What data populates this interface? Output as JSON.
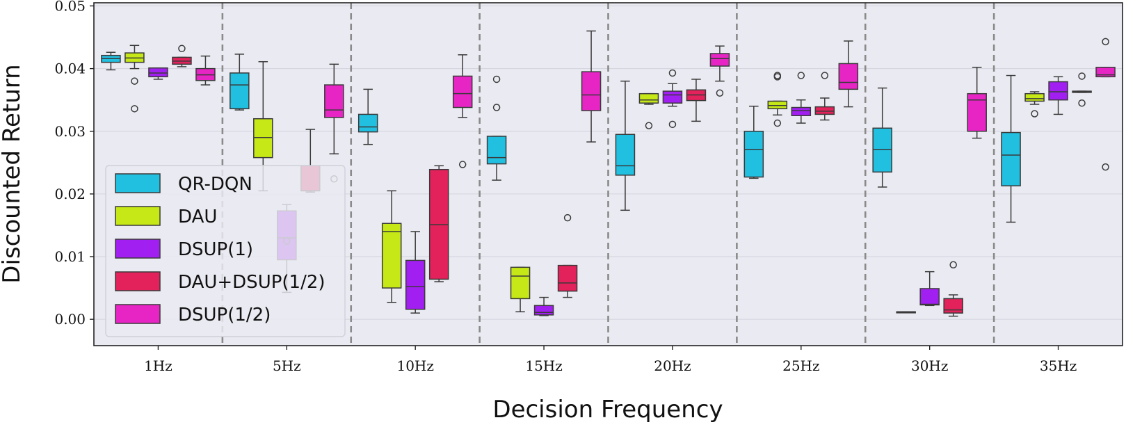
{
  "chart_data": {
    "type": "box",
    "xlabel": "Decision Frequency",
    "ylabel": "Discounted Return",
    "ylim": [
      -0.0042,
      0.0505
    ],
    "yticks": [
      0.0,
      0.01,
      0.02,
      0.03,
      0.04,
      0.05
    ],
    "ytick_labels": [
      "0.00",
      "0.01",
      "0.02",
      "0.03",
      "0.04",
      "0.05"
    ],
    "grid": "horizontal",
    "legend_position": "lower-left",
    "categories": [
      "1Hz",
      "5Hz",
      "10Hz",
      "15Hz",
      "20Hz",
      "25Hz",
      "30Hz",
      "35Hz"
    ],
    "series": [
      {
        "name": "QR-DQN",
        "color": "#21bfe0",
        "boxes": [
          {
            "min": 0.0398,
            "q1": 0.041,
            "median": 0.0416,
            "q3": 0.0421,
            "max": 0.0426,
            "outliers": []
          },
          {
            "min": 0.0334,
            "q1": 0.0336,
            "median": 0.0374,
            "q3": 0.0393,
            "max": 0.0423,
            "outliers": []
          },
          {
            "min": 0.0279,
            "q1": 0.0299,
            "median": 0.0307,
            "q3": 0.0327,
            "max": 0.0367,
            "outliers": []
          },
          {
            "min": 0.0222,
            "q1": 0.0248,
            "median": 0.0258,
            "q3": 0.0292,
            "max": 0.0292,
            "outliers": [
              0.0383,
              0.0338
            ]
          },
          {
            "min": 0.0174,
            "q1": 0.023,
            "median": 0.0245,
            "q3": 0.0295,
            "max": 0.038,
            "outliers": []
          },
          {
            "min": 0.0225,
            "q1": 0.0227,
            "median": 0.0271,
            "q3": 0.03,
            "max": 0.034,
            "outliers": []
          },
          {
            "min": 0.0211,
            "q1": 0.0235,
            "median": 0.0271,
            "q3": 0.0305,
            "max": 0.0369,
            "outliers": []
          },
          {
            "min": 0.0155,
            "q1": 0.0213,
            "median": 0.0262,
            "q3": 0.0298,
            "max": 0.0389,
            "outliers": []
          }
        ]
      },
      {
        "name": "DAU",
        "color": "#c6e816",
        "boxes": [
          {
            "min": 0.04,
            "q1": 0.041,
            "median": 0.0417,
            "q3": 0.0425,
            "max": 0.0437,
            "outliers": [
              0.038,
              0.0336
            ]
          },
          {
            "min": 0.0205,
            "q1": 0.0258,
            "median": 0.029,
            "q3": 0.032,
            "max": 0.0411,
            "outliers": []
          },
          {
            "min": 0.0027,
            "q1": 0.005,
            "median": 0.014,
            "q3": 0.0153,
            "max": 0.0205,
            "outliers": []
          },
          {
            "min": 0.0012,
            "q1": 0.0033,
            "median": 0.0069,
            "q3": 0.0083,
            "max": 0.0083,
            "outliers": []
          },
          {
            "min": 0.0343,
            "q1": 0.0345,
            "median": 0.035,
            "q3": 0.036,
            "max": 0.036,
            "outliers": [
              0.0309
            ]
          },
          {
            "min": 0.0326,
            "q1": 0.0336,
            "median": 0.0341,
            "q3": 0.0348,
            "max": 0.0348,
            "outliers": [
              0.0389,
              0.0387,
              0.0313
            ]
          },
          {
            "min": 0.0012,
            "q1": 0.0012,
            "median": 0.0012,
            "q3": 0.0012,
            "max": 0.0012,
            "outliers": []
          },
          {
            "min": 0.0343,
            "q1": 0.0348,
            "median": 0.0352,
            "q3": 0.036,
            "max": 0.0363,
            "outliers": [
              0.0328
            ]
          }
        ]
      },
      {
        "name": "DSUP(1)",
        "color": "#a21ff2",
        "boxes": [
          {
            "min": 0.0383,
            "q1": 0.0387,
            "median": 0.0393,
            "q3": 0.0401,
            "max": 0.0401,
            "outliers": []
          },
          {
            "min": 0.0043,
            "q1": 0.0095,
            "median": 0.013,
            "q3": 0.0173,
            "max": 0.0183,
            "outliers": [
              0.0125
            ]
          },
          {
            "min": 0.001,
            "q1": 0.0016,
            "median": 0.0052,
            "q3": 0.0094,
            "max": 0.014,
            "outliers": []
          },
          {
            "min": 0.0006,
            "q1": 0.0007,
            "median": 0.0011,
            "q3": 0.0022,
            "max": 0.0035,
            "outliers": []
          },
          {
            "min": 0.034,
            "q1": 0.0345,
            "median": 0.0358,
            "q3": 0.0364,
            "max": 0.0376,
            "outliers": [
              0.0393,
              0.0311
            ]
          },
          {
            "min": 0.0313,
            "q1": 0.0325,
            "median": 0.0333,
            "q3": 0.0338,
            "max": 0.035,
            "outliers": [
              0.0389
            ]
          },
          {
            "min": 0.0022,
            "q1": 0.0023,
            "median": 0.0024,
            "q3": 0.0049,
            "max": 0.0076,
            "outliers": []
          },
          {
            "min": 0.0327,
            "q1": 0.035,
            "median": 0.0363,
            "q3": 0.0379,
            "max": 0.0387,
            "outliers": []
          }
        ]
      },
      {
        "name": "DAU+DSUP(1/2)",
        "color": "#e3215a",
        "boxes": [
          {
            "min": 0.0403,
            "q1": 0.0407,
            "median": 0.0412,
            "q3": 0.0418,
            "max": 0.0418,
            "outliers": [
              0.0432
            ]
          },
          {
            "min": 0.0203,
            "q1": 0.0205,
            "median": 0.0205,
            "q3": 0.0245,
            "max": 0.0303,
            "outliers": []
          },
          {
            "min": 0.006,
            "q1": 0.0064,
            "median": 0.0151,
            "q3": 0.0239,
            "max": 0.0245,
            "outliers": []
          },
          {
            "min": 0.0035,
            "q1": 0.0045,
            "median": 0.0058,
            "q3": 0.0086,
            "max": 0.0086,
            "outliers": [
              0.0162
            ]
          },
          {
            "min": 0.0316,
            "q1": 0.0349,
            "median": 0.0358,
            "q3": 0.0366,
            "max": 0.0383,
            "outliers": []
          },
          {
            "min": 0.0318,
            "q1": 0.0327,
            "median": 0.0332,
            "q3": 0.0339,
            "max": 0.0353,
            "outliers": [
              0.0389
            ]
          },
          {
            "min": 0.0005,
            "q1": 0.001,
            "median": 0.0015,
            "q3": 0.0033,
            "max": 0.0039,
            "outliers": [
              0.0087
            ]
          },
          {
            "min": 0.0362,
            "q1": 0.0362,
            "median": 0.0363,
            "q3": 0.0364,
            "max": 0.0364,
            "outliers": [
              0.0388,
              0.0345
            ]
          }
        ]
      },
      {
        "name": "DSUP(1/2)",
        "color": "#e625c4",
        "boxes": [
          {
            "min": 0.0374,
            "q1": 0.0381,
            "median": 0.039,
            "q3": 0.04,
            "max": 0.042,
            "outliers": []
          },
          {
            "min": 0.0264,
            "q1": 0.0322,
            "median": 0.0334,
            "q3": 0.0374,
            "max": 0.0407,
            "outliers": [
              0.0224
            ]
          },
          {
            "min": 0.0322,
            "q1": 0.0338,
            "median": 0.036,
            "q3": 0.0388,
            "max": 0.0422,
            "outliers": [
              0.0247
            ]
          },
          {
            "min": 0.0283,
            "q1": 0.0333,
            "median": 0.0358,
            "q3": 0.0395,
            "max": 0.046,
            "outliers": []
          },
          {
            "min": 0.038,
            "q1": 0.0404,
            "median": 0.0416,
            "q3": 0.0424,
            "max": 0.0436,
            "outliers": [
              0.0361
            ]
          },
          {
            "min": 0.0339,
            "q1": 0.0367,
            "median": 0.0378,
            "q3": 0.0408,
            "max": 0.0444,
            "outliers": []
          },
          {
            "min": 0.0289,
            "q1": 0.03,
            "median": 0.035,
            "q3": 0.036,
            "max": 0.0402,
            "outliers": []
          },
          {
            "min": 0.0387,
            "q1": 0.0387,
            "median": 0.039,
            "q3": 0.0402,
            "max": 0.0402,
            "outliers": [
              0.0443,
              0.0243
            ]
          }
        ]
      }
    ]
  }
}
